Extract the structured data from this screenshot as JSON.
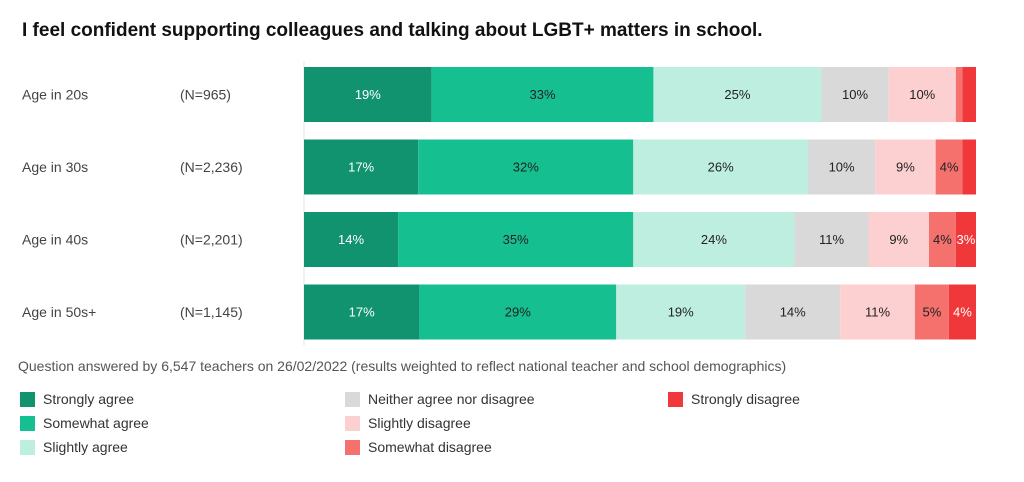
{
  "chart_data": {
    "type": "bar",
    "orientation": "horizontal",
    "stacked": true,
    "normalized": true,
    "title": "I feel confident supporting colleagues and talking about LGBT+ matters in school.",
    "categories": [
      "Age in 20s",
      "Age in 30s",
      "Age in 40s",
      "Age in 50s+"
    ],
    "sample_sizes": [
      "(N=965)",
      "(N=2,236)",
      "(N=2,201)",
      "(N=1,145)"
    ],
    "series": [
      {
        "name": "Strongly agree",
        "color": "#11936f",
        "text_color": "#ffffff",
        "values": [
          19,
          17,
          14,
          17
        ]
      },
      {
        "name": "Somewhat agree",
        "color": "#16bf90",
        "text_color": "#222222",
        "values": [
          33,
          32,
          35,
          29
        ]
      },
      {
        "name": "Slightly agree",
        "color": "#bdeee0",
        "text_color": "#222222",
        "values": [
          25,
          26,
          24,
          19
        ]
      },
      {
        "name": "Neither agree nor disagree",
        "color": "#d9d9d9",
        "text_color": "#222222",
        "values": [
          10,
          10,
          11,
          14
        ]
      },
      {
        "name": "Slightly disagree",
        "color": "#fcd0d0",
        "text_color": "#222222",
        "values": [
          10,
          9,
          9,
          11
        ]
      },
      {
        "name": "Somewhat disagree",
        "color": "#f5716d",
        "text_color": "#222222",
        "values": [
          1,
          4,
          4,
          5
        ]
      },
      {
        "name": "Strongly disagree",
        "color": "#f0383a",
        "text_color": "#ffffff",
        "values": [
          2,
          2,
          3,
          4
        ]
      }
    ],
    "data_labels": [
      [
        "19%",
        "33%",
        "25%",
        "10%",
        "10%",
        "",
        ""
      ],
      [
        "17%",
        "32%",
        "26%",
        "10%",
        "9%",
        "4%",
        ""
      ],
      [
        "14%",
        "35%",
        "24%",
        "11%",
        "9%",
        "4%",
        "3%"
      ],
      [
        "17%",
        "29%",
        "19%",
        "14%",
        "11%",
        "5%",
        "4%"
      ]
    ],
    "legend_position": "bottom",
    "footnote": "Question answered by 6,547 teachers on 26/02/2022 (results weighted to reflect national teacher and school demographics)"
  }
}
